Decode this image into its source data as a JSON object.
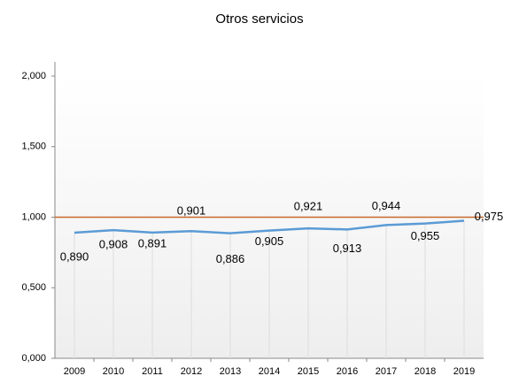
{
  "chart_data": {
    "type": "line",
    "title": "Otros servicios",
    "categories": [
      "2009",
      "2010",
      "2011",
      "2012",
      "2013",
      "2014",
      "2015",
      "2016",
      "2017",
      "2018",
      "2019"
    ],
    "series": [
      {
        "color": "#5b9bd5",
        "values": [
          0.89,
          0.908,
          0.891,
          0.901,
          0.886,
          0.905,
          0.921,
          0.913,
          0.944,
          0.955,
          0.975
        ],
        "value_labels": [
          "0,890",
          "0,908",
          "0,891",
          "0,901",
          "0,886",
          "0,905",
          "0,921",
          "0,913",
          "0,944",
          "0,955",
          "0,975"
        ]
      }
    ],
    "reference_value": 1,
    "reference_color": "#c8692a",
    "ylim": [
      0,
      2
    ],
    "yticks": [
      {
        "value": 0,
        "label": "0,000"
      },
      {
        "value": 0.5,
        "label": "0,500"
      },
      {
        "value": 1,
        "label": "1,000"
      },
      {
        "value": 1.5,
        "label": "1,500"
      },
      {
        "value": 2,
        "label": "2,000"
      }
    ]
  }
}
